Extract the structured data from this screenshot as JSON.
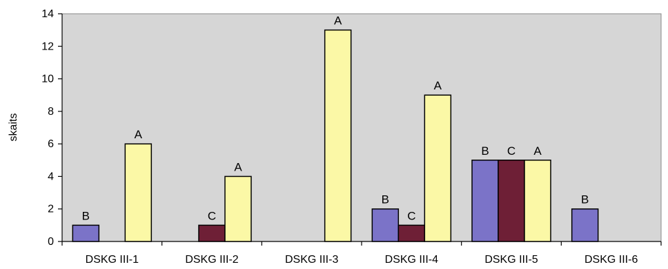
{
  "chart_data": {
    "type": "bar",
    "title": "",
    "xlabel": "",
    "ylabel": "skaits",
    "ylim": [
      0,
      14
    ],
    "yticks": [
      0,
      2,
      4,
      6,
      8,
      10,
      12,
      14
    ],
    "categories": [
      "DSKG III-1",
      "DSKG III-2",
      "DSKG III-3",
      "DSKG III-4",
      "DSKG III-5",
      "DSKG III-6"
    ],
    "series": [
      {
        "color": "#7b73c8",
        "values": [
          1,
          null,
          null,
          2,
          5,
          2
        ],
        "labels": [
          "B",
          "",
          "",
          "B",
          "B",
          "B"
        ]
      },
      {
        "color": "#6e1f36",
        "values": [
          null,
          1,
          null,
          1,
          5,
          null
        ],
        "labels": [
          "",
          "C",
          "",
          "C",
          "C",
          ""
        ]
      },
      {
        "color": "#fbf8a6",
        "values": [
          6,
          4,
          13,
          9,
          5,
          null
        ],
        "labels": [
          "A",
          "A",
          "A",
          "A",
          "A",
          ""
        ]
      }
    ],
    "plot_background": "#d6d6d6",
    "grid": false,
    "legend": "none"
  }
}
